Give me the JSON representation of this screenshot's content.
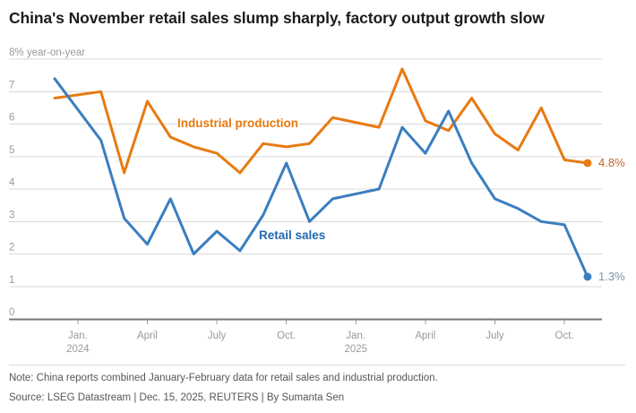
{
  "title": "China's November retail sales slump sharply, factory output growth slow",
  "note": "Note: China reports combined January-February data for retail sales and industrial production.",
  "source": "Source: LSEG Datastream | Dec. 15, 2025, REUTERS | By Sumanta Sen",
  "chart_data": {
    "type": "line",
    "title": "China's November retail sales slump sharply, factory output growth slow",
    "y_axis": {
      "top_label": "8% year-on-year",
      "tick_values": [
        0,
        1,
        2,
        3,
        4,
        5,
        6,
        7
      ],
      "range": [
        0,
        8
      ],
      "grid": true
    },
    "x_axis": {
      "ticks": [
        {
          "label": "Jan.",
          "sublabel": "2024",
          "month_index": 1
        },
        {
          "label": "April",
          "sublabel": "",
          "month_index": 4
        },
        {
          "label": "July",
          "sublabel": "",
          "month_index": 7
        },
        {
          "label": "Oct.",
          "sublabel": "",
          "month_index": 10
        },
        {
          "label": "Jan.",
          "sublabel": "2025",
          "month_index": 13
        },
        {
          "label": "April",
          "sublabel": "",
          "month_index": 16
        },
        {
          "label": "July",
          "sublabel": "",
          "month_index": 19
        },
        {
          "label": "Oct.",
          "sublabel": "",
          "month_index": 22
        }
      ]
    },
    "x_months_from_dec_2023": [
      0,
      2,
      3,
      4,
      5,
      6,
      7,
      8,
      9,
      10,
      11,
      12,
      14,
      15,
      16,
      17,
      18,
      19,
      20,
      21,
      22,
      23
    ],
    "series": [
      {
        "name": "Industrial production",
        "color": "#e87a12",
        "inline_label_color": "#e8780d",
        "end_label": "4.8%",
        "end_label_color": "#c2622e",
        "values": [
          6.8,
          7.0,
          4.5,
          6.7,
          5.6,
          5.3,
          5.1,
          4.5,
          5.4,
          5.3,
          5.4,
          6.2,
          5.9,
          7.7,
          6.1,
          5.8,
          6.8,
          5.7,
          5.2,
          6.5,
          4.9,
          4.8
        ]
      },
      {
        "name": "Retail sales",
        "color": "#3a7ec1",
        "inline_label_color": "#2169b0",
        "end_label": "1.3%",
        "end_label_color": "#7e96ae",
        "values": [
          7.4,
          5.5,
          3.1,
          2.3,
          3.7,
          2.0,
          2.7,
          2.1,
          3.2,
          4.8,
          3.0,
          3.7,
          4.0,
          5.9,
          5.1,
          6.4,
          4.8,
          3.7,
          3.4,
          3.0,
          2.9,
          1.3
        ]
      }
    ],
    "legend_position": "inline-labels",
    "grid_color": "#d9d9d9",
    "axis_color": "#767676",
    "axis_label_color": "#9a9a9a"
  }
}
